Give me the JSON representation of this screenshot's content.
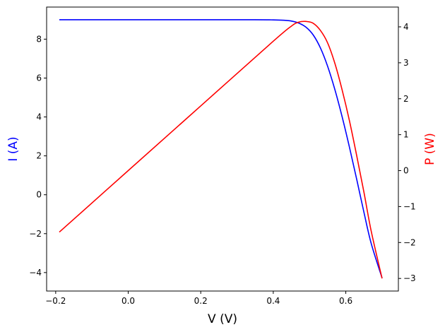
{
  "chart_data": {
    "type": "line",
    "xlabel": "V (V)",
    "ylabel": "I (A)",
    "y2label": "P (W)",
    "xlim": [
      -0.225,
      0.745
    ],
    "ylim": [
      -4.95,
      9.65
    ],
    "y2lim": [
      -3.35,
      4.55
    ],
    "xticks": [
      -0.2,
      0.0,
      0.2,
      0.4,
      0.6
    ],
    "xtick_labels": [
      "−0.2",
      "0.0",
      "0.2",
      "0.4",
      "0.6"
    ],
    "yticks": [
      -4,
      -2,
      0,
      2,
      4,
      6,
      8
    ],
    "ytick_labels": [
      "−4",
      "−2",
      "0",
      "2",
      "4",
      "6",
      "8"
    ],
    "y2ticks": [
      -3,
      -2,
      -1,
      0,
      1,
      2,
      3,
      4
    ],
    "y2tick_labels": [
      "−3",
      "−2",
      "−1",
      "0",
      "1",
      "2",
      "3",
      "4"
    ],
    "grid": false,
    "colors": {
      "current": "#0000ff",
      "power": "#ff0000",
      "axes": "#000000"
    },
    "series": [
      {
        "axis": "left",
        "color": "#0000ff",
        "x": [
          -0.19,
          0.0,
          0.2,
          0.35,
          0.4,
          0.43,
          0.45,
          0.47,
          0.49,
          0.51,
          0.53,
          0.55,
          0.57,
          0.59,
          0.61,
          0.63,
          0.65,
          0.67,
          0.7
        ],
        "values": [
          9.0,
          9.0,
          9.0,
          9.0,
          8.99,
          8.97,
          8.93,
          8.83,
          8.62,
          8.22,
          7.55,
          6.6,
          5.4,
          4.0,
          2.45,
          0.8,
          -0.9,
          -2.5,
          -4.28
        ]
      },
      {
        "axis": "right",
        "color": "#ff0000",
        "x": [
          -0.19,
          0.0,
          0.2,
          0.4,
          0.45,
          0.47,
          0.49,
          0.51,
          0.53,
          0.55,
          0.57,
          0.59,
          0.61,
          0.63,
          0.65,
          0.67,
          0.7
        ],
        "values": [
          -1.71,
          0.0,
          1.8,
          3.6,
          4.02,
          4.13,
          4.15,
          4.1,
          3.9,
          3.55,
          2.98,
          2.24,
          1.39,
          0.42,
          -0.6,
          -1.68,
          -3.0
        ]
      }
    ]
  }
}
